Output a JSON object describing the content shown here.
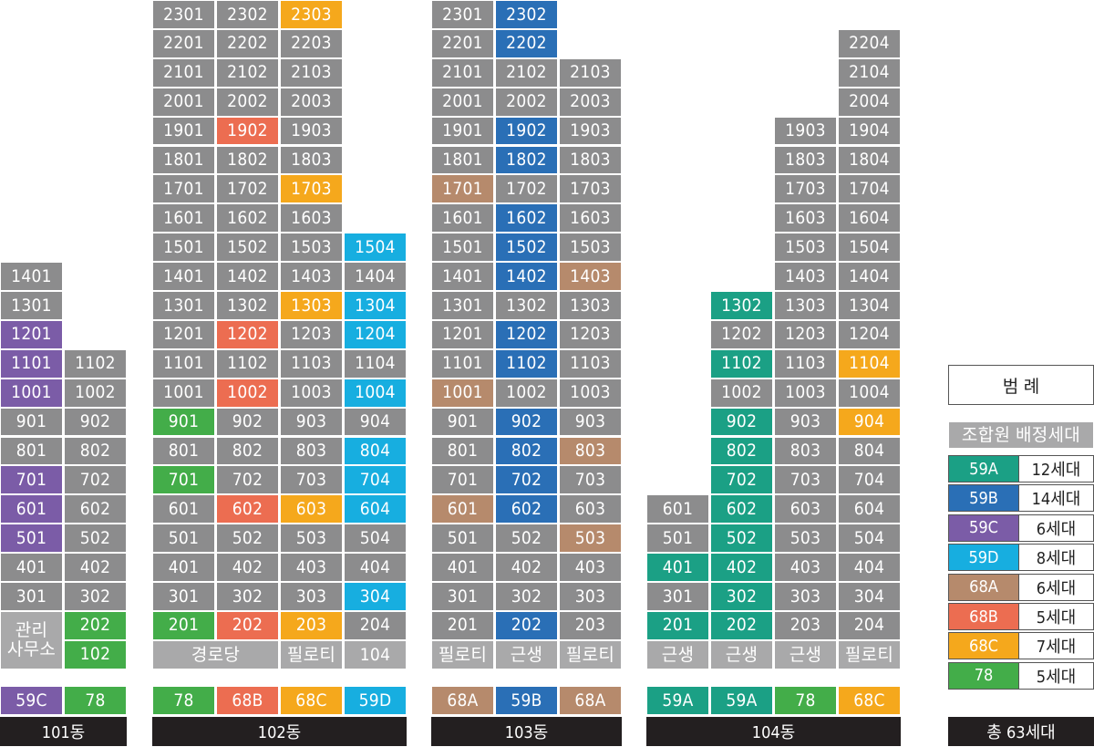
{
  "colors": {
    "59A": "#1ba085",
    "59B": "#2a6fb6",
    "59C": "#7b5ca7",
    "59D": "#17aee0",
    "68A": "#b68a6c",
    "68B": "#ec6d51",
    "68C": "#f5a81c",
    "78": "#43ad49",
    "gray": "#8c8c8d"
  },
  "buildings": [
    {
      "name": "101동",
      "columns": [
        {
          "top_floor": 14,
          "bottom_floor": 3,
          "floors": [
            "1401",
            "1301",
            "1201",
            "1101",
            "1001",
            "901",
            "801",
            "701",
            "601",
            "501",
            "401",
            "301"
          ],
          "highlights": {
            "1201": "59C",
            "1101": "59C",
            "1001": "59C",
            "701": "59C",
            "601": "59C",
            "501": "59C"
          },
          "ground_label": "관리\n사무소",
          "type_label": "59C"
        },
        {
          "top_floor": 11,
          "bottom_floor": 1,
          "floors": [
            "1102",
            "1002",
            "902",
            "802",
            "702",
            "602",
            "502",
            "402",
            "302",
            "202",
            "102"
          ],
          "highlights": {
            "202": "78",
            "102": "78"
          },
          "type_label": "78"
        }
      ]
    },
    {
      "name": "102동",
      "columns": [
        {
          "top_floor": 23,
          "bottom_floor": 2,
          "floors": [
            "2301",
            "2201",
            "2101",
            "2001",
            "1901",
            "1801",
            "1701",
            "1601",
            "1501",
            "1401",
            "1301",
            "1201",
            "1101",
            "1001",
            "901",
            "801",
            "701",
            "601",
            "501",
            "401",
            "301",
            "201"
          ],
          "highlights": {
            "901": "78",
            "701": "78",
            "201": "78"
          },
          "type_label": "78"
        },
        {
          "top_floor": 23,
          "bottom_floor": 2,
          "floors": [
            "2302",
            "2202",
            "2102",
            "2002",
            "1902",
            "1802",
            "1702",
            "1602",
            "1502",
            "1402",
            "1302",
            "1202",
            "1102",
            "1002",
            "902",
            "802",
            "702",
            "602",
            "502",
            "402",
            "302",
            "202"
          ],
          "highlights": {
            "1902": "68B",
            "1202": "68B",
            "1002": "68B",
            "602": "68B",
            "202": "68B"
          },
          "type_label": "68B"
        },
        {
          "top_floor": 23,
          "bottom_floor": 2,
          "floors": [
            "2303",
            "2203",
            "2103",
            "2003",
            "1903",
            "1803",
            "1703",
            "1603",
            "1503",
            "1403",
            "1303",
            "1203",
            "1103",
            "1003",
            "903",
            "803",
            "703",
            "603",
            "503",
            "403",
            "303",
            "203"
          ],
          "highlights": {
            "2303": "68C",
            "1703": "68C",
            "1303": "68C",
            "603": "68C",
            "203": "68C"
          },
          "ground_label": "필로티",
          "type_label": "68C"
        },
        {
          "top_floor": 15,
          "bottom_floor": 2,
          "floors": [
            "1504",
            "1404",
            "1304",
            "1204",
            "1104",
            "1004",
            "904",
            "804",
            "704",
            "604",
            "504",
            "404",
            "304",
            "204"
          ],
          "highlights": {
            "1504": "59D",
            "1304": "59D",
            "1204": "59D",
            "1004": "59D",
            "804": "59D",
            "704": "59D",
            "604": "59D",
            "304": "59D"
          },
          "ground_label": "104",
          "type_label": "59D"
        }
      ],
      "ground_span_label": "경로당"
    },
    {
      "name": "103동",
      "columns": [
        {
          "top_floor": 23,
          "bottom_floor": 2,
          "floors": [
            "2301",
            "2201",
            "2101",
            "2001",
            "1901",
            "1801",
            "1701",
            "1601",
            "1501",
            "1401",
            "1301",
            "1201",
            "1101",
            "1001",
            "901",
            "801",
            "701",
            "601",
            "501",
            "401",
            "301",
            "201"
          ],
          "highlights": {
            "1701": "68A",
            "1001": "68A",
            "601": "68A"
          },
          "ground_label": "필로티",
          "type_label": "68A"
        },
        {
          "top_floor": 23,
          "bottom_floor": 2,
          "floors": [
            "2302",
            "2202",
            "2102",
            "2002",
            "1902",
            "1802",
            "1702",
            "1602",
            "1502",
            "1402",
            "1302",
            "1202",
            "1102",
            "1002",
            "902",
            "802",
            "702",
            "602",
            "502",
            "402",
            "302",
            "202"
          ],
          "highlights": {
            "2302": "59B",
            "2202": "59B",
            "1902": "59B",
            "1802": "59B",
            "1602": "59B",
            "1502": "59B",
            "1402": "59B",
            "1202": "59B",
            "1102": "59B",
            "902": "59B",
            "802": "59B",
            "702": "59B",
            "602": "59B",
            "202": "59B"
          },
          "ground_label": "근생",
          "type_label": "59B"
        },
        {
          "top_floor": 21,
          "bottom_floor": 2,
          "floors": [
            "2103",
            "2003",
            "1903",
            "1803",
            "1703",
            "1603",
            "1503",
            "1403",
            "1303",
            "1203",
            "1103",
            "1003",
            "903",
            "803",
            "703",
            "603",
            "503",
            "403",
            "303",
            "203"
          ],
          "highlights": {
            "1403": "68A",
            "803": "68A",
            "503": "68A"
          },
          "ground_label": "필로티",
          "type_label": "68A"
        }
      ]
    },
    {
      "name": "104동",
      "columns": [
        {
          "top_floor": 6,
          "bottom_floor": 2,
          "floors": [
            "601",
            "501",
            "401",
            "301",
            "201"
          ],
          "highlights": {
            "401": "59A",
            "201": "59A"
          },
          "ground_label": "근생",
          "type_label": "59A"
        },
        {
          "top_floor": 13,
          "bottom_floor": 2,
          "floors": [
            "1302",
            "1202",
            "1102",
            "1002",
            "902",
            "802",
            "702",
            "602",
            "502",
            "402",
            "302",
            "202"
          ],
          "highlights": {
            "1302": "59A",
            "1102": "59A",
            "902": "59A",
            "802": "59A",
            "702": "59A",
            "602": "59A",
            "502": "59A",
            "402": "59A",
            "302": "59A",
            "202": "59A"
          },
          "ground_label": "근생",
          "type_label": "59A"
        },
        {
          "top_floor": 19,
          "bottom_floor": 2,
          "floors": [
            "1903",
            "1803",
            "1703",
            "1603",
            "1503",
            "1403",
            "1303",
            "1203",
            "1103",
            "1003",
            "903",
            "803",
            "703",
            "603",
            "503",
            "403",
            "303",
            "203"
          ],
          "highlights": {},
          "ground_label": "근생",
          "type_label": "78"
        },
        {
          "top_floor": 22,
          "bottom_floor": 2,
          "floors": [
            "2204",
            "2104",
            "2004",
            "1904",
            "1804",
            "1704",
            "1604",
            "1504",
            "1404",
            "1304",
            "1204",
            "1104",
            "1004",
            "904",
            "804",
            "704",
            "604",
            "504",
            "404",
            "304",
            "204"
          ],
          "highlights": {
            "1104": "68C",
            "904": "68C"
          },
          "ground_label": "필로티",
          "type_label": "68C"
        }
      ]
    }
  ],
  "legend": {
    "title": "범 례",
    "subtitle": "조합원 배정세대",
    "items": [
      {
        "type": "59A",
        "count": "12세대"
      },
      {
        "type": "59B",
        "count": "14세대"
      },
      {
        "type": "59C",
        "count": "6세대"
      },
      {
        "type": "59D",
        "count": "8세대"
      },
      {
        "type": "68A",
        "count": "6세대"
      },
      {
        "type": "68B",
        "count": "5세대"
      },
      {
        "type": "68C",
        "count": "7세대"
      },
      {
        "type": "78",
        "count": "5세대"
      }
    ],
    "total": "총 63세대"
  }
}
